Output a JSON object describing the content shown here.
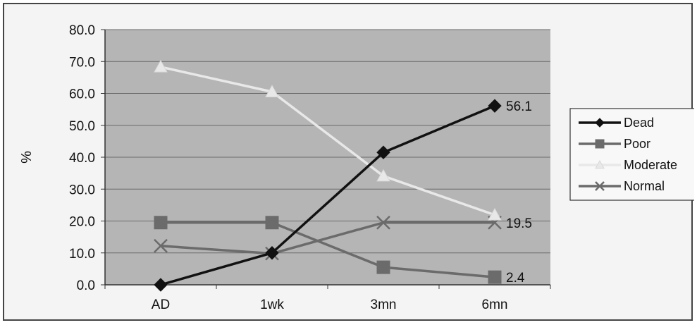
{
  "chart_data": {
    "type": "line",
    "categories": [
      "AD",
      "1wk",
      "3mn",
      "6mn"
    ],
    "ylabel": "%",
    "ylim": [
      0,
      80
    ],
    "yticks": [
      "0.0",
      "10.0",
      "20.0",
      "30.0",
      "40.0",
      "50.0",
      "60.0",
      "70.0",
      "80.0"
    ],
    "grid": true,
    "legend_position": "right",
    "series": [
      {
        "name": "Dead",
        "values": [
          0.0,
          10.0,
          41.5,
          56.1
        ],
        "color": "#111111",
        "marker": "diamond"
      },
      {
        "name": "Poor",
        "values": [
          19.5,
          19.5,
          5.5,
          2.4
        ],
        "color": "#6b6b6b",
        "marker": "square"
      },
      {
        "name": "Moderate",
        "values": [
          68.3,
          60.5,
          34.1,
          21.9
        ],
        "color": "#e8e8e8",
        "marker": "triangle"
      },
      {
        "name": "Normal",
        "values": [
          12.2,
          9.8,
          19.5,
          19.5
        ],
        "color": "#6b6b6b",
        "marker": "x"
      }
    ],
    "data_labels": [
      {
        "series": "Dead",
        "category": "6mn",
        "text": "56.1"
      },
      {
        "series": "Normal",
        "category": "6mn",
        "text": "19.5"
      },
      {
        "series": "Poor",
        "category": "6mn",
        "text": "2.4"
      }
    ]
  }
}
